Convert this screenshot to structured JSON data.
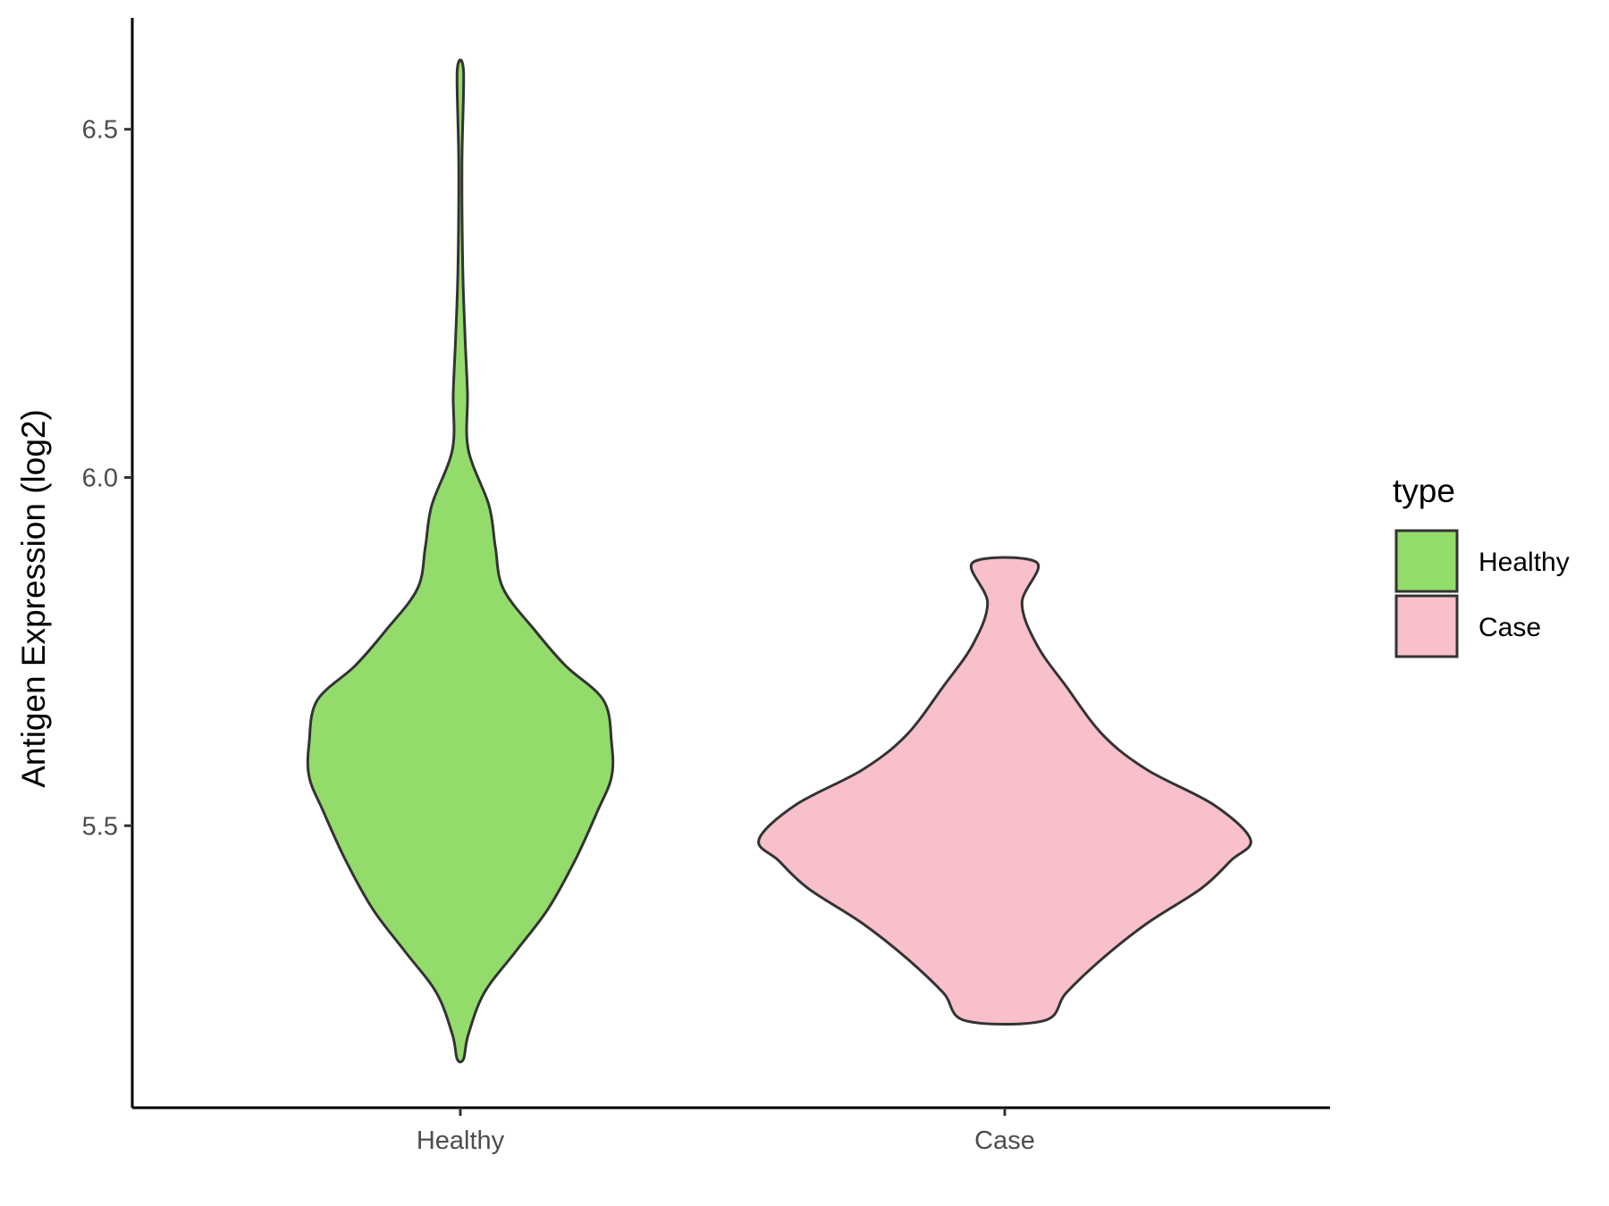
{
  "chart_data": {
    "type": "violin",
    "categories": [
      "Healthy",
      "Case"
    ],
    "xlabel": "",
    "ylabel": "Antigen Expression (log2)",
    "ylim": [
      5.095,
      6.66
    ],
    "yticks": [
      5.5,
      6.0,
      6.5
    ],
    "ytick_labels": [
      "5.5",
      "6.0",
      "6.5"
    ],
    "grid": false,
    "legend": {
      "title": "type",
      "position": "right",
      "entries": [
        {
          "label": "Healthy",
          "color": "#93dc6b"
        },
        {
          "label": "Case",
          "color": "#f8c0cb"
        }
      ]
    },
    "series": [
      {
        "name": "Healthy",
        "color": "#93dc6b",
        "min": 5.165,
        "max": 6.583,
        "density_profile": [
          [
            5.165,
            0.02
          ],
          [
            5.2,
            0.05
          ],
          [
            5.26,
            0.15
          ],
          [
            5.32,
            0.35
          ],
          [
            5.38,
            0.55
          ],
          [
            5.45,
            0.72
          ],
          [
            5.52,
            0.86
          ],
          [
            5.57,
            0.95
          ],
          [
            5.62,
            0.95
          ],
          [
            5.68,
            0.9
          ],
          [
            5.73,
            0.66
          ],
          [
            5.78,
            0.47
          ],
          [
            5.84,
            0.27
          ],
          [
            5.9,
            0.22
          ],
          [
            5.96,
            0.18
          ],
          [
            6.04,
            0.05
          ],
          [
            6.12,
            0.045
          ],
          [
            6.2,
            0.03
          ],
          [
            6.3,
            0.015
          ],
          [
            6.45,
            0.01
          ],
          [
            6.583,
            0.02
          ]
        ]
      },
      {
        "name": "Case",
        "color": "#f8c0cb",
        "min": 5.22,
        "max": 5.878,
        "density_profile": [
          [
            5.22,
            0.16
          ],
          [
            5.26,
            0.25
          ],
          [
            5.31,
            0.4
          ],
          [
            5.36,
            0.58
          ],
          [
            5.41,
            0.8
          ],
          [
            5.45,
            0.92
          ],
          [
            5.48,
            1.0
          ],
          [
            5.53,
            0.85
          ],
          [
            5.58,
            0.58
          ],
          [
            5.63,
            0.4
          ],
          [
            5.7,
            0.25
          ],
          [
            5.76,
            0.13
          ],
          [
            5.82,
            0.07
          ],
          [
            5.878,
            0.13
          ]
        ]
      }
    ]
  }
}
